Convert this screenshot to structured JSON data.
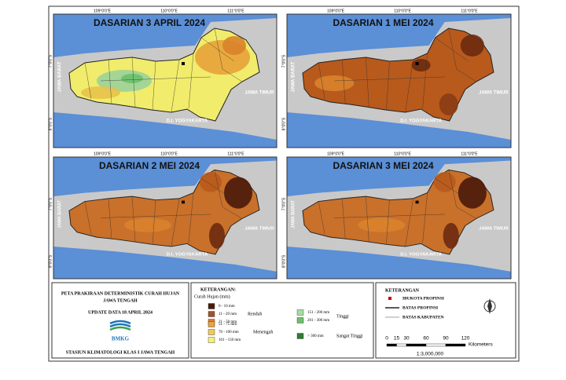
{
  "panels": [
    {
      "title": "DASARIAN 3  APRIL 2024"
    },
    {
      "title": "DASARIAN 1 MEI 2024"
    },
    {
      "title": "DASARIAN 2 MEI 2024"
    },
    {
      "title": "DASARIAN 3 MEI 2024"
    }
  ],
  "map_labels": {
    "west": "JAWA BARAT",
    "east": "JAWA TIMUR",
    "yogya": "D.I. YOGYAKARTA"
  },
  "coords": {
    "lon": [
      "109°0'0\"E",
      "110°0'0\"E",
      "111°0'0\"E"
    ],
    "lat": [
      "7°0'0\"S",
      "8°0'0\"S"
    ]
  },
  "info": {
    "title": "PETA PRAKIRAAN DETERMINISTIK CURAH HUJAN",
    "region": "JAWA TENGAH",
    "update": "UPDATE DATA 18 APRIL 2024",
    "logo": "BMKG",
    "station": "STASIUN KLIMATOLOGI KLAS I JAWA TENGAH"
  },
  "legend": {
    "title": "KETERANGAN:",
    "subtitle": "Curah Hujan (mm)",
    "groups": [
      {
        "name": "Rendah",
        "items": [
          {
            "label": "0 - 10 mm",
            "color": "#4a1a0a"
          },
          {
            "label": "11 - 20 mm",
            "color": "#a0522d"
          },
          {
            "label": "21 - 50 mm",
            "color": "#d9822b"
          }
        ]
      },
      {
        "name": "Menengah",
        "items": [
          {
            "label": "51 - 75 mm",
            "color": "#e8a33c"
          },
          {
            "label": "76 - 100 mm",
            "color": "#f0c95a"
          },
          {
            "label": "101 - 150 mm",
            "color": "#f5f07a"
          }
        ]
      },
      {
        "name": "Tinggi",
        "items": [
          {
            "label": "151 - 200 mm",
            "color": "#a8dca0"
          },
          {
            "label": "201 - 300 mm",
            "color": "#6cc06c"
          }
        ]
      },
      {
        "name": "Sangat Tinggi",
        "items": [
          {
            "label": "> 300 mm",
            "color": "#2e7d32"
          }
        ]
      }
    ]
  },
  "symbols": {
    "title": "KETERANGAN",
    "items": [
      "IBUKOTA PROPINSI",
      "BATAS PROPINSI",
      "BATAS KABUPATEN"
    ],
    "scale_ticks": [
      0,
      15,
      30,
      60,
      90,
      120
    ],
    "scale_unit": "Kilometers",
    "ratio": "1:3,000,000"
  }
}
